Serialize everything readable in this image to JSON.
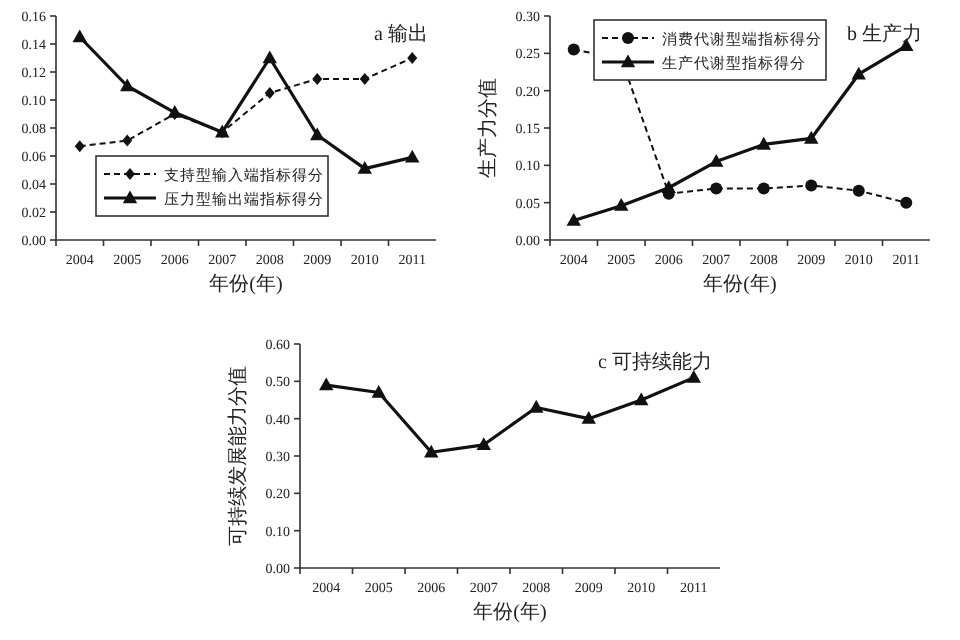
{
  "chart_data": [
    {
      "type": "line",
      "title": "a 输出",
      "xlabel": "年份(年)",
      "categories": [
        "2004",
        "2005",
        "2006",
        "2007",
        "2008",
        "2009",
        "2010",
        "2011"
      ],
      "ylim": [
        0,
        0.16
      ],
      "yticks": [
        {
          "value": 0,
          "label": "0.00"
        },
        {
          "value": 0.02,
          "label": "0.02"
        },
        {
          "value": 0.04,
          "label": "0.04"
        },
        {
          "value": 0.06,
          "label": "0.06"
        },
        {
          "value": 0.08,
          "label": "0.08"
        },
        {
          "value": 0.1,
          "label": "0.10"
        },
        {
          "value": 0.12,
          "label": "0.12"
        },
        {
          "value": 0.14,
          "label": "0.14"
        },
        {
          "value": 0.16,
          "label": "0.16"
        }
      ],
      "grid": false,
      "legend": "bottom left",
      "series": [
        {
          "name": "支持型输入端指标得分",
          "color": "#111111",
          "marker": "diamond",
          "line_style": "dashed",
          "values": [
            0.067,
            0.071,
            0.09,
            0.077,
            0.105,
            0.115,
            0.115,
            0.13
          ]
        },
        {
          "name": "压力型输出端指标得分",
          "color": "#111111",
          "marker": "triangle",
          "line_style": "solid",
          "values": [
            0.145,
            0.11,
            0.091,
            0.077,
            0.13,
            0.075,
            0.051,
            0.059
          ]
        }
      ]
    },
    {
      "type": "line",
      "title": "b 生产力",
      "xlabel": "年份(年)",
      "ylabel": "生产力分值",
      "categories": [
        "2004",
        "2005",
        "2006",
        "2007",
        "2008",
        "2009",
        "2010",
        "2011"
      ],
      "ylim": [
        0,
        0.3
      ],
      "yticks": [
        {
          "value": 0,
          "label": "0.00"
        },
        {
          "value": 0.05,
          "label": "0.05"
        },
        {
          "value": 0.1,
          "label": "0.10"
        },
        {
          "value": 0.15,
          "label": "0.15"
        },
        {
          "value": 0.2,
          "label": "0.20"
        },
        {
          "value": 0.25,
          "label": "0.25"
        },
        {
          "value": 0.3,
          "label": "0.30"
        }
      ],
      "grid": false,
      "legend": "top",
      "series": [
        {
          "name": "消费代谢型端指标得分",
          "color": "#111111",
          "marker": "circle",
          "line_style": "dashed",
          "values": [
            0.255,
            0.243,
            0.062,
            0.069,
            0.069,
            0.073,
            0.066,
            0.05
          ]
        },
        {
          "name": "生产代谢型指标得分",
          "color": "#111111",
          "marker": "triangle",
          "line_style": "solid",
          "values": [
            0.026,
            0.046,
            0.07,
            0.105,
            0.128,
            0.136,
            0.222,
            0.26
          ]
        }
      ]
    },
    {
      "type": "line",
      "title": "c 可持续能力",
      "xlabel": "年份(年)",
      "ylabel": "可持续发展能力分值",
      "categories": [
        "2004",
        "2005",
        "2006",
        "2007",
        "2008",
        "2009",
        "2010",
        "2011"
      ],
      "ylim": [
        0,
        0.6
      ],
      "yticks": [
        {
          "value": 0,
          "label": "0.00"
        },
        {
          "value": 0.1,
          "label": "0.10"
        },
        {
          "value": 0.2,
          "label": "0.20"
        },
        {
          "value": 0.3,
          "label": "0.30"
        },
        {
          "value": 0.4,
          "label": "0.40"
        },
        {
          "value": 0.5,
          "label": "0.50"
        },
        {
          "value": 0.6,
          "label": "0.60"
        }
      ],
      "grid": false,
      "legend": false,
      "marker": "triangle",
      "line_style": "solid",
      "series": [
        {
          "color": "#111111",
          "values": [
            0.49,
            0.47,
            0.31,
            0.33,
            0.43,
            0.4,
            0.45,
            0.51
          ]
        }
      ]
    }
  ]
}
